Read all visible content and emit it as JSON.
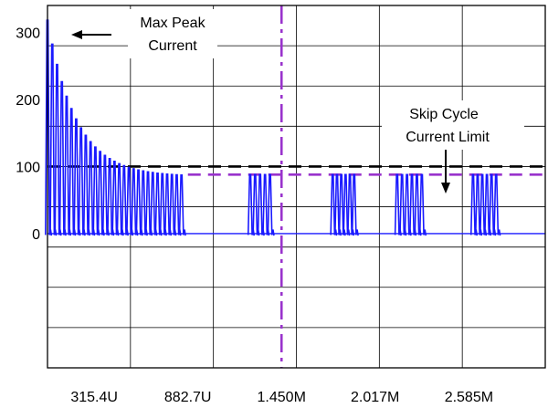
{
  "chart_data": {
    "type": "line",
    "title": "",
    "xlabel": "",
    "ylabel": "",
    "x_tick_labels": [
      "315.4U",
      "882.7U",
      "1.450M",
      "2.017M",
      "2.585M"
    ],
    "x_tick_values": [
      0.0003154,
      0.0008827,
      0.00145,
      0.002017,
      0.002585
    ],
    "xlim": [
      3.24e-05,
      0.0030476
    ],
    "y_tick_labels": [
      "0",
      "100",
      "200",
      "300"
    ],
    "y_tick_values": [
      0,
      100,
      200,
      300
    ],
    "ylim": [
      -200,
      340
    ],
    "grid": true,
    "series": [
      {
        "color": "#1a1aff",
        "description": "current pulses",
        "bursts": [
          {
            "start": 3.24e-05,
            "end": 0.000844,
            "pulses": 29,
            "peak_start": 318,
            "peak_end": 85,
            "decay": "exponential"
          },
          {
            "start": 0.00126,
            "end": 0.00138,
            "pulses": 5,
            "peak": 88
          },
          {
            "start": 0.00176,
            "end": 0.00189,
            "pulses": 6,
            "peak": 88
          },
          {
            "start": 0.00215,
            "end": 0.0023,
            "pulses": 6,
            "peak": 88
          },
          {
            "start": 0.00261,
            "end": 0.00275,
            "pulses": 6,
            "peak": 88
          }
        ]
      }
    ],
    "reference_lines": [
      {
        "type": "horizontal",
        "y": 100,
        "color": "#000000",
        "dash": true,
        "from_x": 3.24e-05
      },
      {
        "type": "horizontal",
        "y": 88,
        "color": "#9933cc",
        "dash": true,
        "from_x": 0.000883
      },
      {
        "type": "vertical",
        "x": 0.00145,
        "color": "#9933cc",
        "dash": true
      }
    ],
    "annotations": [
      {
        "lines": [
          "Max Peak",
          "Current"
        ],
        "points_to": "first peak"
      },
      {
        "lines": [
          "Skip Cycle",
          "Current Limit"
        ],
        "points_to": "skip cycle limit line"
      }
    ]
  }
}
